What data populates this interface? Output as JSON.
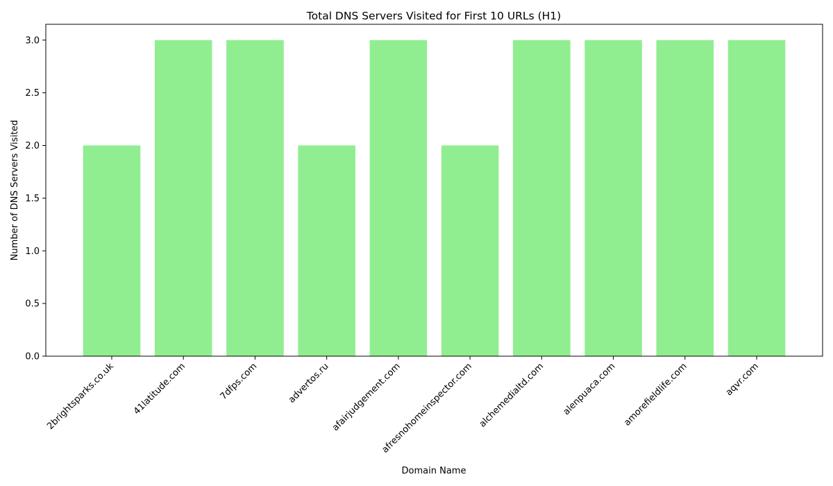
{
  "chart_data": {
    "type": "bar",
    "title": "Total DNS Servers Visited for First 10 URLs (H1)",
    "xlabel": "Domain Name",
    "ylabel": "Number of DNS Servers Visited",
    "categories": [
      "2brightsparks.co.uk",
      "41latitude.com",
      "7dfps.com",
      "advertos.ru",
      "afairjudgement.com",
      "afresnohomeinspector.com",
      "alchemedialtd.com",
      "alenpuaca.com",
      "amorefieldlife.com",
      "aqvr.com"
    ],
    "values": [
      2,
      3,
      3,
      2,
      3,
      2,
      3,
      3,
      3,
      3
    ],
    "ylim": [
      0,
      3.15
    ],
    "yticks": [
      0.0,
      0.5,
      1.0,
      1.5,
      2.0,
      2.5,
      3.0
    ],
    "ytick_labels": [
      "0.0",
      "0.5",
      "1.0",
      "1.5",
      "2.0",
      "2.5",
      "3.0"
    ],
    "bar_color": "#90ee90",
    "grid": false,
    "legend": "none"
  }
}
